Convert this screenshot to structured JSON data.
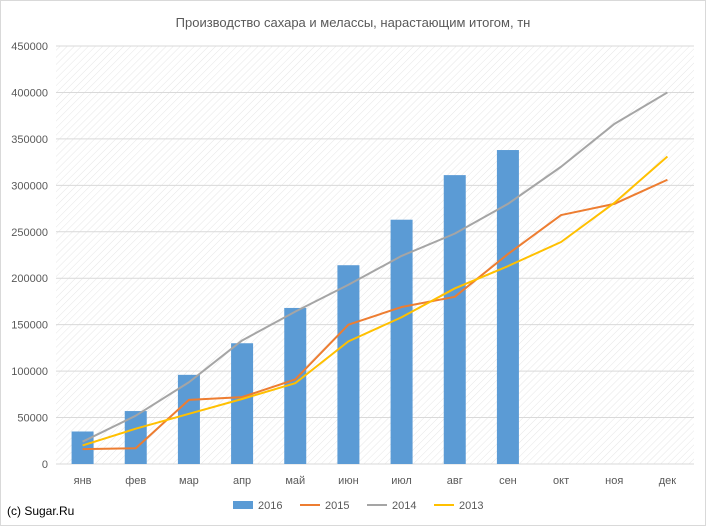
{
  "credit": "(c) Sugar.Ru",
  "chart_data": {
    "type": "bar+line",
    "title": "Производство сахара и мелассы, нарастающим итогом, тн",
    "categories": [
      "янв",
      "фев",
      "мар",
      "апр",
      "май",
      "июн",
      "июл",
      "авг",
      "сен",
      "окт",
      "ноя",
      "дек"
    ],
    "ylim": [
      0,
      450000
    ],
    "yticks": [
      0,
      50000,
      100000,
      150000,
      200000,
      250000,
      300000,
      350000,
      400000,
      450000
    ],
    "grid": true,
    "legend_position": "bottom",
    "series": [
      {
        "name": "2016",
        "type": "bar",
        "color": "#5b9bd5",
        "values": [
          35000,
          57000,
          96000,
          130000,
          168000,
          214000,
          263000,
          311000,
          338000,
          null,
          null,
          null
        ]
      },
      {
        "name": "2015",
        "type": "line",
        "color": "#ed7d31",
        "values": [
          16000,
          17000,
          69000,
          72000,
          91000,
          150000,
          169000,
          180000,
          226000,
          268000,
          280000,
          306000
        ]
      },
      {
        "name": "2014",
        "type": "line",
        "color": "#a5a5a5",
        "values": [
          24000,
          52000,
          88000,
          133000,
          164000,
          193000,
          224000,
          248000,
          280000,
          320000,
          366000,
          400000
        ]
      },
      {
        "name": "2013",
        "type": "line",
        "color": "#ffc000",
        "values": [
          20000,
          38000,
          54000,
          70000,
          87000,
          132000,
          158000,
          189000,
          213000,
          239000,
          281000,
          331000
        ]
      }
    ]
  }
}
